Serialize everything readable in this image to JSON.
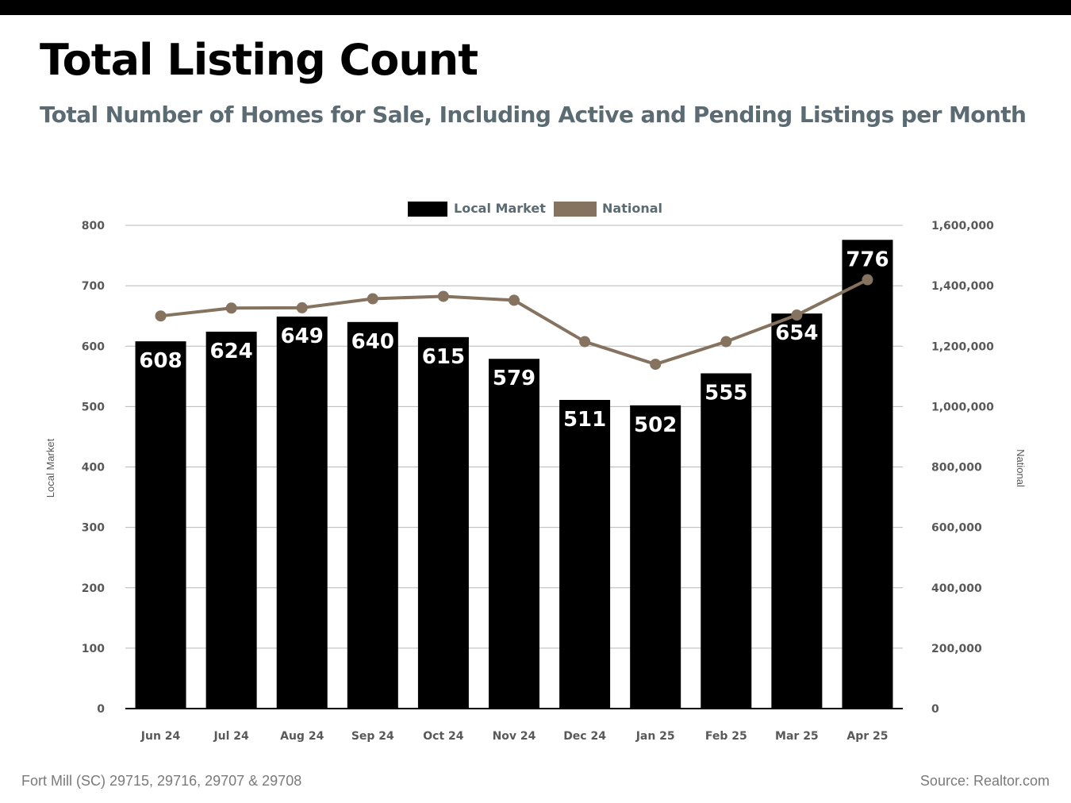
{
  "header": {
    "title": "Total Listing Count",
    "subtitle": "Total Number of Homes for Sale, Including Active and Pending Listings per Month"
  },
  "footer": {
    "location": "Fort Mill (SC) 29715, 29716, 29707 & 29708",
    "source": "Source: Realtor.com"
  },
  "colors": {
    "local_bar": "#000000",
    "national_line": "#85725f",
    "grid": "#b8b8b8",
    "axis_text": "#595959",
    "legend_text": "#5b6b73"
  },
  "chart_data": {
    "type": "bar",
    "categories": [
      "Jun 24",
      "Jul 24",
      "Aug 24",
      "Sep 24",
      "Oct 24",
      "Nov 24",
      "Dec 24",
      "Jan 25",
      "Feb 25",
      "Mar 25",
      "Apr 25"
    ],
    "series": [
      {
        "name": "Local Market",
        "type": "bar",
        "axis": "left",
        "values": [
          608,
          624,
          649,
          640,
          615,
          579,
          511,
          502,
          555,
          654,
          776
        ],
        "data_labels": [
          "608",
          "624",
          "649",
          "640",
          "615",
          "579",
          "511",
          "502",
          "555",
          "654",
          "776"
        ]
      },
      {
        "name": "National",
        "type": "line",
        "axis": "right",
        "values": [
          1300000,
          1326000,
          1327000,
          1357000,
          1365000,
          1352000,
          1215000,
          1140000,
          1215000,
          1303000,
          1420000
        ]
      }
    ],
    "ylabel": "Local Market",
    "y2label": "National",
    "ylim": [
      0,
      800
    ],
    "y2lim": [
      0,
      1600000
    ],
    "yticks": [
      "0",
      "100",
      "200",
      "300",
      "400",
      "500",
      "600",
      "700",
      "800"
    ],
    "y2ticks": [
      "0",
      "200,000",
      "400,000",
      "600,000",
      "800,000",
      "1,000,000",
      "1,200,000",
      "1,400,000",
      "1,600,000"
    ],
    "grid": true,
    "legend": "top-center"
  }
}
